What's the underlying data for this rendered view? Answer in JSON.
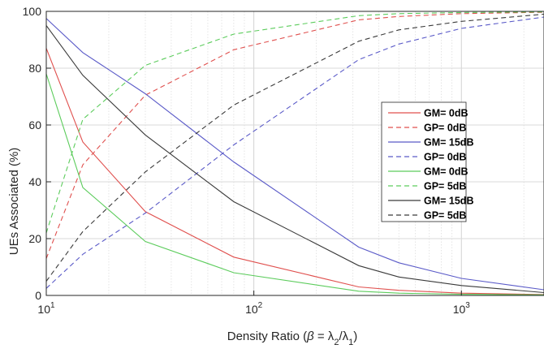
{
  "chart_data": {
    "type": "line",
    "xscale": "log",
    "xlim": [
      10,
      2500
    ],
    "ylim": [
      0,
      100
    ],
    "grid": true,
    "legend_placement": "center-right",
    "xlabel_text": "Density Ratio (",
    "xlabel_beta": "β",
    "xlabel_eq": " = λ",
    "xlabel_sub2": "2",
    "xlabel_slash": "/λ",
    "xlabel_sub1": "1",
    "xlabel_close": ")",
    "ylabel": "UEs Associated (%)",
    "x_ticks": [
      {
        "value": 10,
        "base": "10",
        "exp": "1"
      },
      {
        "value": 100,
        "base": "10",
        "exp": "2"
      },
      {
        "value": 1000,
        "base": "10",
        "exp": "3"
      }
    ],
    "y_ticks": [
      0,
      20,
      40,
      60,
      80,
      100
    ],
    "x": [
      10,
      15,
      30,
      80,
      320,
      500,
      1000,
      2500
    ],
    "series": [
      {
        "name": "GM= 0dB",
        "color": "#e0504e",
        "dash": "solid",
        "values": [
          87,
          54,
          29.5,
          13.5,
          3,
          1.8,
          0.8,
          0.3
        ]
      },
      {
        "name": "GP= 0dB",
        "color": "#e0504e",
        "dash": "dashed",
        "values": [
          13,
          46,
          70.5,
          86.5,
          97,
          98.2,
          99.2,
          99.7
        ]
      },
      {
        "name": "GM= 15dB",
        "color": "#5a5ac8",
        "dash": "solid",
        "values": [
          97.5,
          85.5,
          71,
          47,
          17,
          11.5,
          6,
          2
        ]
      },
      {
        "name": "GP= 0dB",
        "color": "#5a5ac8",
        "dash": "dashed",
        "values": [
          2.5,
          14.5,
          29,
          53,
          83,
          88.5,
          94,
          98
        ]
      },
      {
        "name": "GM= 0dB",
        "color": "#5ccc5c",
        "dash": "solid",
        "values": [
          78,
          38,
          19,
          8,
          1.5,
          0.8,
          0.4,
          0.2
        ]
      },
      {
        "name": "GP= 5dB",
        "color": "#5ccc5c",
        "dash": "dashed",
        "values": [
          22,
          62,
          81,
          92,
          98.5,
          99.2,
          99.6,
          99.8
        ]
      },
      {
        "name": "GM= 15dB",
        "color": "#3a3a3a",
        "dash": "solid",
        "values": [
          95,
          77.5,
          56.5,
          33,
          10.5,
          6.5,
          3.5,
          1
        ]
      },
      {
        "name": "GP= 5dB",
        "color": "#3a3a3a",
        "dash": "dashed",
        "values": [
          5,
          22.5,
          43.5,
          67,
          89.5,
          93.5,
          96.5,
          99
        ]
      }
    ]
  }
}
